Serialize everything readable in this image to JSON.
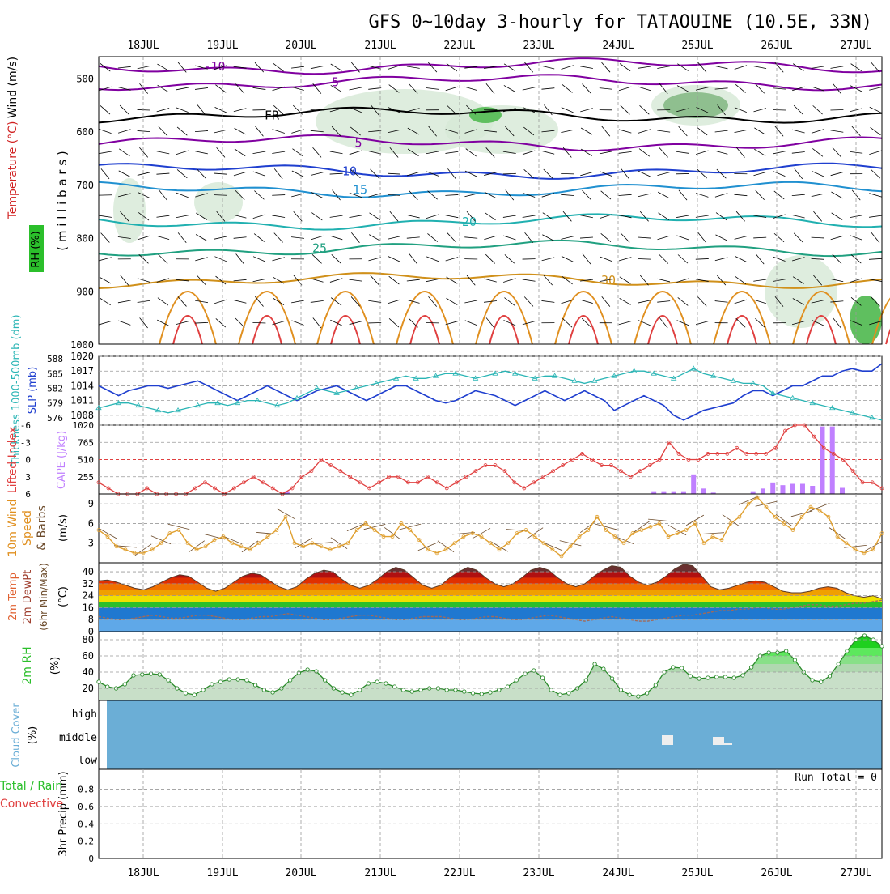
{
  "title": "GFS 0~10day 3-hourly for TATAOUINE (10.5E, 33N)",
  "dates": [
    "18JUL",
    "19JUL",
    "20JUL",
    "21JUL",
    "22JUL",
    "23JUL",
    "24JUL",
    "25JUL",
    "26JUL",
    "27JUL"
  ],
  "panel_labels": {
    "upper_rh": "RH (%)",
    "upper_temp": "Temperature (°C)",
    "upper_wind": "Wind (m/s)",
    "upper_units": "( m i l l i b a r s )",
    "thickness": "Thickness 1000-500mb (dm)",
    "slp": "SLP (mb)",
    "lifted_index": "Lifted Index",
    "cape": "CAPE (J/kg)",
    "wind10m": "10m Wind Speed & Barbs",
    "wind10m_units": "(m/s)",
    "temp2m": "2m Temp",
    "dewpt2m": "2m DewPt",
    "minmax": "(6hr Min/Max)",
    "temp_units": "(°C)",
    "rh2m": "2m RH",
    "rh_units": "(%)",
    "cloud": "Cloud Cover",
    "cloud_units": "(%)",
    "precip_total": "Total / Rain",
    "precip_conv": "Convective",
    "precip": "3hr Precip (mm)"
  },
  "run_total": "Run Total = 0",
  "colors": {
    "slp": "#1f3fcf",
    "thickness": "#2ab5b5",
    "lifted": "#e04040",
    "cape": "#c080ff",
    "wind": "#e0a030",
    "rh": "#2a8a2a",
    "cloud": "#6baed6"
  },
  "chart_data": [
    {
      "type": "contour",
      "title": "Upper-air cross section",
      "ylabel": "millibars",
      "ylim": [
        1000,
        460
      ],
      "yticks": [
        500,
        600,
        700,
        800,
        900,
        1000
      ],
      "temp_contour_labels": [
        "-10",
        "-5",
        "FR",
        "5",
        "10",
        "15",
        "20",
        "25",
        "30"
      ],
      "rh_contour_label": "30"
    },
    {
      "type": "line",
      "title": "SLP and Thickness",
      "slp_ticks": [
        1008,
        1011,
        1014,
        1017,
        1020
      ],
      "thick_ticks": [
        576,
        579,
        582,
        585,
        588
      ],
      "series": [
        {
          "name": "SLP (mb)",
          "values": [
            1014,
            1013,
            1012,
            1013,
            1013.5,
            1014,
            1014,
            1013.5,
            1014,
            1014.5,
            1015,
            1014,
            1013,
            1012,
            1011,
            1012,
            1013,
            1014,
            1013,
            1012,
            1011,
            1012,
            1013,
            1013.5,
            1014,
            1013,
            1012,
            1011,
            1012,
            1013,
            1014,
            1014,
            1013,
            1012,
            1011,
            1010.5,
            1011,
            1012,
            1013,
            1012.5,
            1012,
            1011,
            1010,
            1011,
            1012,
            1013,
            1012,
            1011,
            1012,
            1013,
            1012,
            1011,
            1009,
            1010,
            1011,
            1012,
            1011,
            1010,
            1008,
            1007,
            1008,
            1009,
            1009.5,
            1010,
            1010.5,
            1012,
            1013,
            1013,
            1012,
            1013,
            1014,
            1014,
            1015,
            1016,
            1016,
            1017,
            1017.5,
            1017,
            1017,
            1018.5
          ]
        },
        {
          "name": "Thickness (dm)",
          "values": [
            578,
            578.5,
            579,
            579,
            578.5,
            578,
            577.5,
            577,
            577.5,
            578,
            578.5,
            579,
            579,
            578.5,
            579,
            579.5,
            579.5,
            579,
            578.5,
            579,
            580,
            581,
            582,
            581.5,
            581,
            581.5,
            582,
            582.5,
            583,
            583.5,
            584,
            584.5,
            584,
            584,
            584.5,
            585,
            585,
            584.5,
            584,
            584.5,
            585,
            585.5,
            585,
            584.5,
            584,
            584.5,
            584.5,
            584,
            583.5,
            583,
            583.5,
            584,
            584.5,
            585,
            585.5,
            585.5,
            585,
            584.5,
            584,
            585,
            586,
            585,
            584.5,
            584,
            583.5,
            583,
            583,
            582.5,
            581,
            580.5,
            580,
            579.5,
            579,
            578.5,
            578,
            577.5,
            577,
            576.5,
            576,
            575.5
          ]
        }
      ]
    },
    {
      "type": "bar",
      "title": "Lifted Index and CAPE",
      "li_ticks": [
        6,
        3,
        0,
        -3,
        -6
      ],
      "cape_ticks": [
        255,
        510,
        765,
        1020
      ],
      "series": [
        {
          "name": "Lifted Index",
          "values": [
            4,
            5,
            6,
            6,
            6,
            5,
            6,
            6,
            6,
            6,
            5,
            4,
            5,
            6,
            5,
            4,
            3,
            4,
            5,
            6,
            5,
            3,
            2,
            0,
            1,
            2,
            3,
            4,
            5,
            4,
            3,
            3,
            4,
            4,
            3,
            4,
            5,
            4,
            3,
            2,
            1,
            1,
            2,
            4,
            5,
            4,
            3,
            2,
            1,
            0,
            -1,
            0,
            1,
            1,
            2,
            3,
            2,
            1,
            0,
            -3,
            -1,
            0,
            0,
            -1,
            -1,
            -1,
            -2,
            -1,
            -1,
            -1,
            -2,
            -5,
            -7,
            -6,
            -4,
            -2,
            -1,
            0,
            2,
            4,
            4,
            5
          ]
        },
        {
          "name": "CAPE",
          "values": [
            0,
            0,
            0,
            0,
            0,
            0,
            0,
            0,
            0,
            0,
            0,
            0,
            0,
            0,
            0,
            0,
            0,
            0,
            0,
            40,
            0,
            0,
            0,
            0,
            0,
            0,
            0,
            0,
            0,
            0,
            0,
            0,
            0,
            0,
            0,
            0,
            0,
            0,
            0,
            0,
            0,
            0,
            0,
            0,
            0,
            0,
            0,
            0,
            0,
            0,
            0,
            0,
            0,
            0,
            0,
            0,
            40,
            40,
            40,
            40,
            290,
            80,
            20,
            0,
            0,
            0,
            40,
            80,
            170,
            130,
            150,
            150,
            120,
            1000,
            1000,
            90,
            0,
            0,
            0,
            0
          ]
        }
      ]
    },
    {
      "type": "line",
      "title": "10m Wind Speed",
      "ylim": [
        0,
        10.5
      ],
      "yticks": [
        3,
        6,
        9
      ],
      "values": [
        5,
        4,
        2.5,
        2,
        1.5,
        1.5,
        2,
        3,
        4.5,
        5,
        3,
        2,
        2.5,
        3.5,
        4,
        3,
        2.5,
        2,
        3,
        4,
        5,
        7,
        3,
        2.5,
        3,
        2.5,
        2,
        2.5,
        3,
        5,
        6,
        5,
        4,
        4,
        6,
        5,
        3.5,
        2,
        1.5,
        2,
        3,
        4,
        4.5,
        4,
        3,
        2,
        3,
        4.5,
        5,
        4,
        3,
        2,
        1,
        2.5,
        4,
        5,
        7,
        5,
        4,
        3,
        4.5,
        5,
        5.5,
        6,
        4,
        4.5,
        5,
        6,
        3,
        4,
        3.5,
        6,
        7,
        9,
        10,
        8.5,
        7,
        6,
        5,
        7,
        8.5,
        8,
        7,
        4,
        3,
        2,
        1.5,
        2,
        4.5
      ]
    },
    {
      "type": "area",
      "title": "2m Temp / DewPt",
      "yticks": [
        0,
        8,
        16,
        24,
        32,
        40
      ],
      "temp": [
        34,
        34.5,
        33,
        31,
        29,
        28,
        30,
        33,
        36,
        38,
        37,
        33,
        29,
        27,
        29,
        33,
        37,
        39,
        38,
        34,
        30,
        28,
        30,
        35,
        39,
        41,
        40,
        35,
        31,
        29,
        31,
        35,
        40,
        43,
        41,
        36,
        31,
        29,
        31,
        36,
        40,
        43,
        41,
        36,
        32,
        30,
        32,
        36,
        41,
        43,
        41,
        36,
        32,
        30,
        32,
        37,
        41,
        44,
        43,
        37,
        33,
        31,
        33,
        37,
        42,
        45,
        44,
        37,
        30,
        28,
        29,
        31,
        33,
        34,
        33,
        30,
        27,
        26,
        26,
        27,
        29,
        30,
        29,
        26,
        24,
        23,
        24,
        22
      ],
      "dewpt": [
        10,
        9,
        8,
        8,
        9,
        10,
        11,
        10,
        9,
        9,
        10,
        11,
        11,
        10,
        9,
        8,
        8,
        9,
        10,
        10,
        11,
        12,
        11,
        10,
        9,
        8,
        8,
        9,
        10,
        11,
        11,
        10,
        9,
        8,
        8,
        9,
        10,
        10,
        10,
        9,
        8,
        8,
        9,
        10,
        10,
        9,
        8,
        8,
        9,
        10,
        11,
        10,
        9,
        8,
        7,
        8,
        9,
        10,
        9,
        8,
        7,
        7,
        8,
        9,
        10,
        11,
        11,
        12,
        13,
        14,
        14,
        15,
        15,
        16,
        16,
        15,
        15,
        16,
        17,
        18,
        18,
        17,
        17,
        18,
        19,
        19,
        20,
        21
      ]
    },
    {
      "type": "area",
      "title": "2m RH",
      "yticks": [
        20,
        40,
        60,
        80
      ],
      "values": [
        28,
        22,
        20,
        25,
        36,
        37,
        38,
        37,
        30,
        20,
        14,
        12,
        18,
        25,
        28,
        31,
        31,
        30,
        24,
        18,
        15,
        20,
        30,
        39,
        43,
        41,
        30,
        20,
        15,
        12,
        18,
        26,
        28,
        26,
        22,
        18,
        16,
        18,
        20,
        20,
        18,
        18,
        16,
        14,
        13,
        15,
        18,
        22,
        30,
        38,
        42,
        33,
        18,
        12,
        14,
        20,
        30,
        50,
        44,
        32,
        18,
        12,
        10,
        14,
        24,
        40,
        46,
        45,
        35,
        32,
        33,
        34,
        34,
        33,
        36,
        46,
        60,
        64,
        64,
        66,
        55,
        40,
        30,
        28,
        35,
        50,
        66,
        80,
        85,
        80,
        72
      ]
    },
    {
      "type": "heatmap",
      "title": "Cloud Cover",
      "levels": [
        "high",
        "middle",
        "low"
      ]
    },
    {
      "type": "line",
      "title": "3hr Precip (mm)",
      "yticks": [
        0,
        0.2,
        0.4,
        0.6,
        0.8
      ],
      "ylim": [
        0,
        1
      ],
      "values": []
    }
  ]
}
